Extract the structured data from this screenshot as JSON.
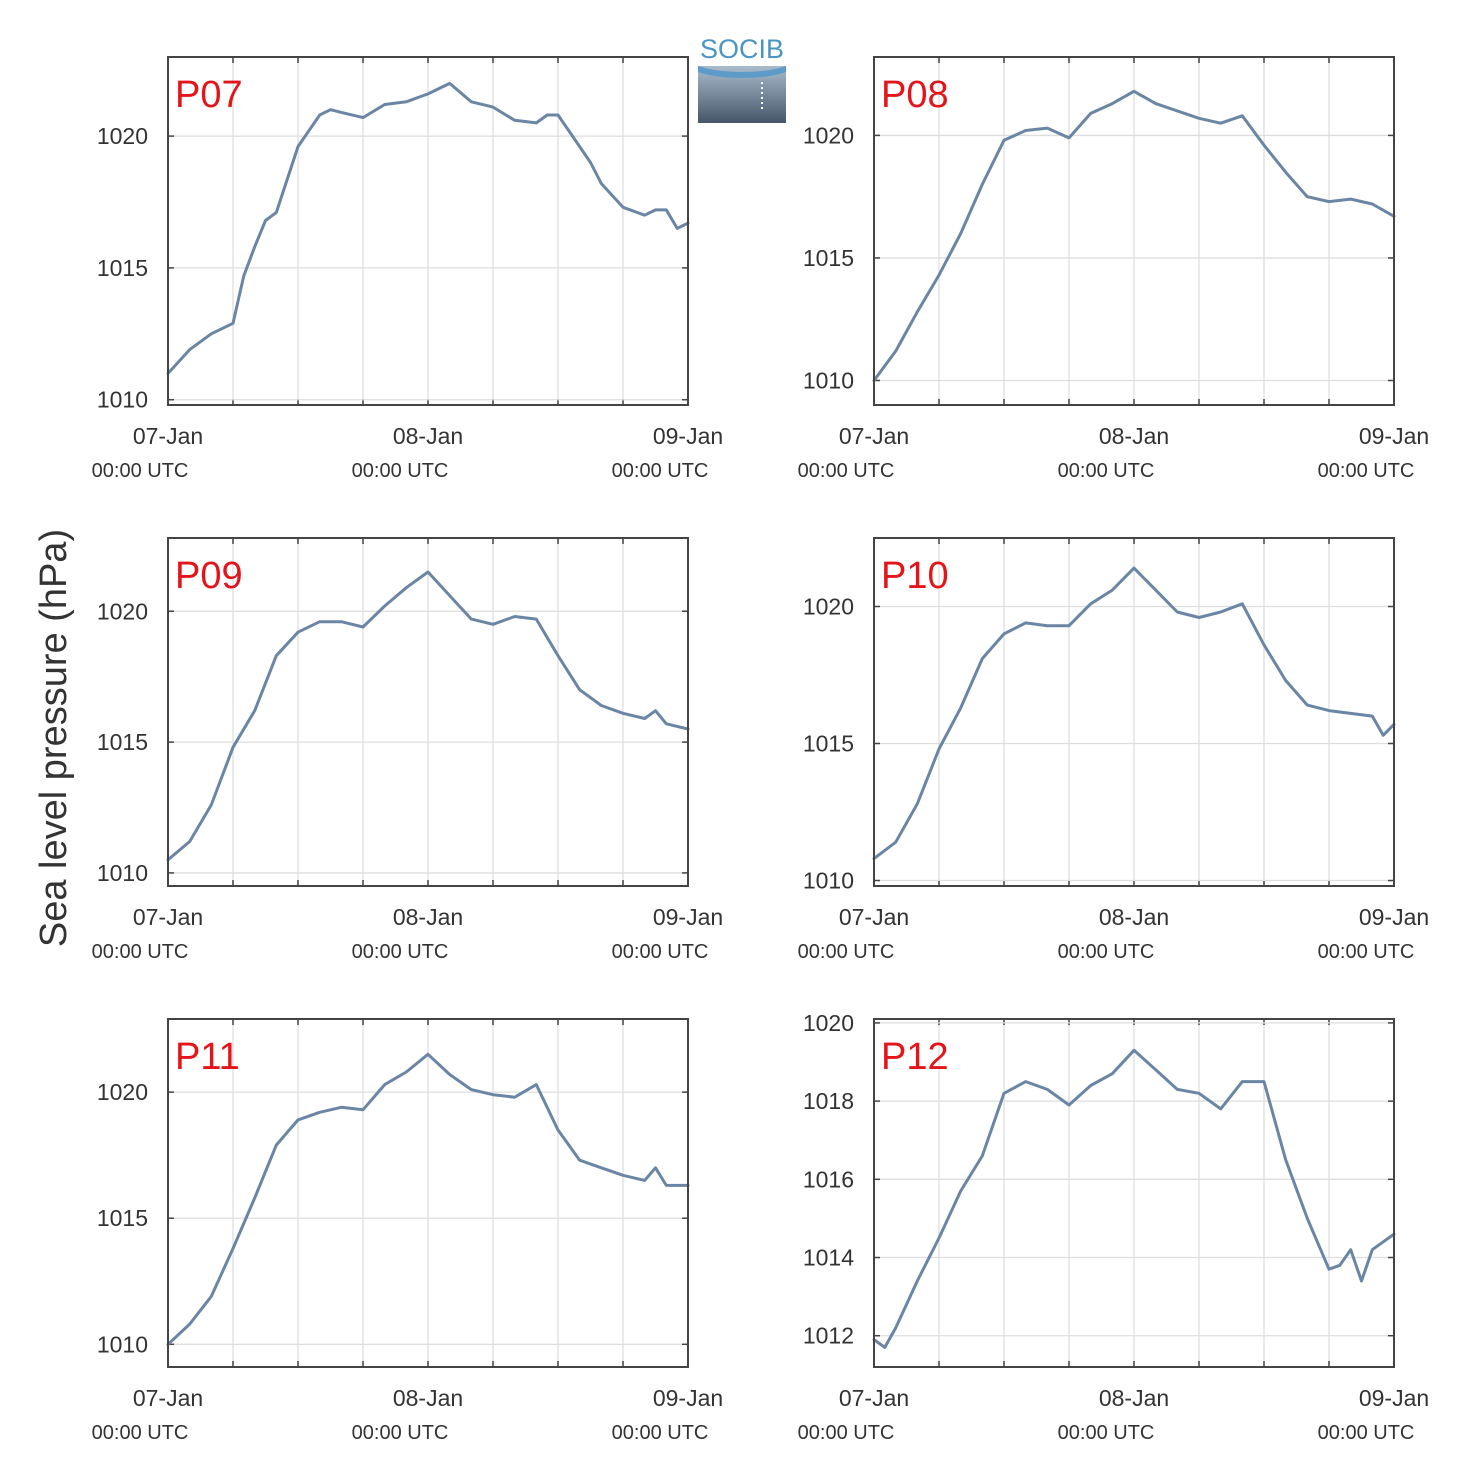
{
  "figure": {
    "ylabel": "Sea level pressure (hPa)",
    "logo_text": "SOCIB",
    "colors": {
      "line": "#6a86a4",
      "label": "#e4141b",
      "grid": "#dedede",
      "axis": "#444444"
    }
  },
  "chart_data": [
    {
      "type": "line",
      "label": "P07",
      "x_ticks": [
        {
          "main": "07-Jan",
          "sub": "00:00 UTC"
        },
        {
          "main": "08-Jan",
          "sub": "00:00 UTC"
        },
        {
          "main": "09-Jan",
          "sub": "00:00 UTC"
        }
      ],
      "xlim": [
        "2019-01-07T00:00",
        "2019-01-09T00:00"
      ],
      "ylim": [
        1009.8,
        1023
      ],
      "yticks": [
        1010,
        1015,
        1020
      ],
      "grid": true,
      "x": [
        "2019-01-07T00:00",
        "2019-01-07T02:00",
        "2019-01-07T04:00",
        "2019-01-07T06:00",
        "2019-01-07T07:00",
        "2019-01-07T08:00",
        "2019-01-07T09:00",
        "2019-01-07T10:00",
        "2019-01-07T12:00",
        "2019-01-07T14:00",
        "2019-01-07T15:00",
        "2019-01-07T16:00",
        "2019-01-07T18:00",
        "2019-01-07T20:00",
        "2019-01-07T22:00",
        "2019-01-08T00:00",
        "2019-01-08T02:00",
        "2019-01-08T04:00",
        "2019-01-08T06:00",
        "2019-01-08T08:00",
        "2019-01-08T10:00",
        "2019-01-08T11:00",
        "2019-01-08T12:00",
        "2019-01-08T14:00",
        "2019-01-08T15:00",
        "2019-01-08T16:00",
        "2019-01-08T18:00",
        "2019-01-08T20:00",
        "2019-01-08T21:00",
        "2019-01-08T22:00",
        "2019-01-08T23:00",
        "2019-01-09T00:00"
      ],
      "y": [
        1011.0,
        1011.9,
        1012.5,
        1012.9,
        1014.7,
        1015.8,
        1016.8,
        1017.1,
        1019.6,
        1020.8,
        1021.0,
        1020.9,
        1020.7,
        1021.2,
        1021.3,
        1021.6,
        1022.0,
        1021.3,
        1021.1,
        1020.6,
        1020.5,
        1020.8,
        1020.8,
        1019.6,
        1019.0,
        1018.2,
        1017.3,
        1017.0,
        1017.2,
        1017.2,
        1016.5,
        1016.7
      ]
    },
    {
      "type": "line",
      "label": "P08",
      "x_ticks": [
        {
          "main": "07-Jan",
          "sub": "00:00 UTC"
        },
        {
          "main": "08-Jan",
          "sub": "00:00 UTC"
        },
        {
          "main": "09-Jan",
          "sub": "00:00 UTC"
        }
      ],
      "xlim": [
        "2019-01-07T00:00",
        "2019-01-09T00:00"
      ],
      "ylim": [
        1009.0,
        1023.2
      ],
      "yticks": [
        1010,
        1015,
        1020
      ],
      "grid": true,
      "x": [
        "2019-01-07T00:00",
        "2019-01-07T02:00",
        "2019-01-07T04:00",
        "2019-01-07T06:00",
        "2019-01-07T08:00",
        "2019-01-07T10:00",
        "2019-01-07T12:00",
        "2019-01-07T14:00",
        "2019-01-07T16:00",
        "2019-01-07T18:00",
        "2019-01-07T20:00",
        "2019-01-07T22:00",
        "2019-01-08T00:00",
        "2019-01-08T02:00",
        "2019-01-08T04:00",
        "2019-01-08T06:00",
        "2019-01-08T08:00",
        "2019-01-08T10:00",
        "2019-01-08T12:00",
        "2019-01-08T14:00",
        "2019-01-08T16:00",
        "2019-01-08T18:00",
        "2019-01-08T20:00",
        "2019-01-08T22:00",
        "2019-01-09T00:00"
      ],
      "y": [
        1010.0,
        1011.2,
        1012.8,
        1014.3,
        1016.0,
        1018.0,
        1019.8,
        1020.2,
        1020.3,
        1019.9,
        1020.9,
        1021.3,
        1021.8,
        1021.3,
        1021.0,
        1020.7,
        1020.5,
        1020.8,
        1019.6,
        1018.5,
        1017.5,
        1017.3,
        1017.4,
        1017.2,
        1016.7
      ]
    },
    {
      "type": "line",
      "label": "P09",
      "x_ticks": [
        {
          "main": "07-Jan",
          "sub": "00:00 UTC"
        },
        {
          "main": "08-Jan",
          "sub": "00:00 UTC"
        },
        {
          "main": "09-Jan",
          "sub": "00:00 UTC"
        }
      ],
      "xlim": [
        "2019-01-07T00:00",
        "2019-01-09T00:00"
      ],
      "ylim": [
        1009.5,
        1022.8
      ],
      "yticks": [
        1010,
        1015,
        1020
      ],
      "grid": true,
      "x": [
        "2019-01-07T00:00",
        "2019-01-07T02:00",
        "2019-01-07T04:00",
        "2019-01-07T06:00",
        "2019-01-07T08:00",
        "2019-01-07T10:00",
        "2019-01-07T12:00",
        "2019-01-07T14:00",
        "2019-01-07T16:00",
        "2019-01-07T18:00",
        "2019-01-07T20:00",
        "2019-01-07T22:00",
        "2019-01-08T00:00",
        "2019-01-08T02:00",
        "2019-01-08T04:00",
        "2019-01-08T06:00",
        "2019-01-08T08:00",
        "2019-01-08T10:00",
        "2019-01-08T12:00",
        "2019-01-08T14:00",
        "2019-01-08T16:00",
        "2019-01-08T18:00",
        "2019-01-08T20:00",
        "2019-01-08T21:00",
        "2019-01-08T22:00",
        "2019-01-09T00:00"
      ],
      "y": [
        1010.5,
        1011.2,
        1012.6,
        1014.8,
        1016.2,
        1018.3,
        1019.2,
        1019.6,
        1019.6,
        1019.4,
        1020.2,
        1020.9,
        1021.5,
        1020.6,
        1019.7,
        1019.5,
        1019.8,
        1019.7,
        1018.3,
        1017.0,
        1016.4,
        1016.1,
        1015.9,
        1016.2,
        1015.7,
        1015.5
      ]
    },
    {
      "type": "line",
      "label": "P10",
      "x_ticks": [
        {
          "main": "07-Jan",
          "sub": "00:00 UTC"
        },
        {
          "main": "08-Jan",
          "sub": "00:00 UTC"
        },
        {
          "main": "09-Jan",
          "sub": "00:00 UTC"
        }
      ],
      "xlim": [
        "2019-01-07T00:00",
        "2019-01-09T00:00"
      ],
      "ylim": [
        1009.8,
        1022.5
      ],
      "yticks": [
        1010,
        1015,
        1020
      ],
      "grid": true,
      "x": [
        "2019-01-07T00:00",
        "2019-01-07T02:00",
        "2019-01-07T04:00",
        "2019-01-07T06:00",
        "2019-01-07T08:00",
        "2019-01-07T10:00",
        "2019-01-07T12:00",
        "2019-01-07T14:00",
        "2019-01-07T16:00",
        "2019-01-07T18:00",
        "2019-01-07T20:00",
        "2019-01-07T22:00",
        "2019-01-08T00:00",
        "2019-01-08T02:00",
        "2019-01-08T04:00",
        "2019-01-08T06:00",
        "2019-01-08T08:00",
        "2019-01-08T10:00",
        "2019-01-08T12:00",
        "2019-01-08T14:00",
        "2019-01-08T16:00",
        "2019-01-08T18:00",
        "2019-01-08T20:00",
        "2019-01-08T22:00",
        "2019-01-08T23:00",
        "2019-01-09T00:00"
      ],
      "y": [
        1010.8,
        1011.4,
        1012.8,
        1014.8,
        1016.3,
        1018.1,
        1019.0,
        1019.4,
        1019.3,
        1019.3,
        1020.1,
        1020.6,
        1021.4,
        1020.6,
        1019.8,
        1019.6,
        1019.8,
        1020.1,
        1018.6,
        1017.3,
        1016.4,
        1016.2,
        1016.1,
        1016.0,
        1015.3,
        1015.7
      ]
    },
    {
      "type": "line",
      "label": "P11",
      "x_ticks": [
        {
          "main": "07-Jan",
          "sub": "00:00 UTC"
        },
        {
          "main": "08-Jan",
          "sub": "00:00 UTC"
        },
        {
          "main": "09-Jan",
          "sub": "00:00 UTC"
        }
      ],
      "xlim": [
        "2019-01-07T00:00",
        "2019-01-09T00:00"
      ],
      "ylim": [
        1009.1,
        1022.9
      ],
      "yticks": [
        1010,
        1015,
        1020
      ],
      "grid": true,
      "x": [
        "2019-01-07T00:00",
        "2019-01-07T02:00",
        "2019-01-07T04:00",
        "2019-01-07T06:00",
        "2019-01-07T08:00",
        "2019-01-07T10:00",
        "2019-01-07T12:00",
        "2019-01-07T14:00",
        "2019-01-07T16:00",
        "2019-01-07T18:00",
        "2019-01-07T20:00",
        "2019-01-07T22:00",
        "2019-01-08T00:00",
        "2019-01-08T02:00",
        "2019-01-08T04:00",
        "2019-01-08T06:00",
        "2019-01-08T08:00",
        "2019-01-08T10:00",
        "2019-01-08T12:00",
        "2019-01-08T14:00",
        "2019-01-08T16:00",
        "2019-01-08T18:00",
        "2019-01-08T20:00",
        "2019-01-08T21:00",
        "2019-01-08T22:00",
        "2019-01-09T00:00"
      ],
      "y": [
        1010.0,
        1010.8,
        1011.9,
        1013.8,
        1015.8,
        1017.9,
        1018.9,
        1019.2,
        1019.4,
        1019.3,
        1020.3,
        1020.8,
        1021.5,
        1020.7,
        1020.1,
        1019.9,
        1019.8,
        1020.3,
        1018.5,
        1017.3,
        1017.0,
        1016.7,
        1016.5,
        1017.0,
        1016.3,
        1016.3
      ]
    },
    {
      "type": "line",
      "label": "P12",
      "x_ticks": [
        {
          "main": "07-Jan",
          "sub": "00:00 UTC"
        },
        {
          "main": "08-Jan",
          "sub": "00:00 UTC"
        },
        {
          "main": "09-Jan",
          "sub": "00:00 UTC"
        }
      ],
      "xlim": [
        "2019-01-07T00:00",
        "2019-01-09T00:00"
      ],
      "ylim": [
        1011.2,
        1020.1
      ],
      "yticks": [
        1012,
        1014,
        1016,
        1018,
        1020
      ],
      "grid": true,
      "x": [
        "2019-01-07T00:00",
        "2019-01-07T01:00",
        "2019-01-07T02:00",
        "2019-01-07T04:00",
        "2019-01-07T06:00",
        "2019-01-07T08:00",
        "2019-01-07T10:00",
        "2019-01-07T12:00",
        "2019-01-07T14:00",
        "2019-01-07T16:00",
        "2019-01-07T18:00",
        "2019-01-07T20:00",
        "2019-01-07T22:00",
        "2019-01-08T00:00",
        "2019-01-08T02:00",
        "2019-01-08T04:00",
        "2019-01-08T06:00",
        "2019-01-08T08:00",
        "2019-01-08T10:00",
        "2019-01-08T12:00",
        "2019-01-08T14:00",
        "2019-01-08T16:00",
        "2019-01-08T18:00",
        "2019-01-08T19:00",
        "2019-01-08T20:00",
        "2019-01-08T21:00",
        "2019-01-08T22:00",
        "2019-01-09T00:00"
      ],
      "y": [
        1011.9,
        1011.7,
        1012.2,
        1013.4,
        1014.5,
        1015.7,
        1016.6,
        1018.2,
        1018.5,
        1018.3,
        1017.9,
        1018.4,
        1018.7,
        1019.3,
        1018.8,
        1018.3,
        1018.2,
        1017.8,
        1018.5,
        1018.5,
        1016.5,
        1015.0,
        1013.7,
        1013.8,
        1014.2,
        1013.4,
        1014.2,
        1014.6
      ]
    }
  ]
}
